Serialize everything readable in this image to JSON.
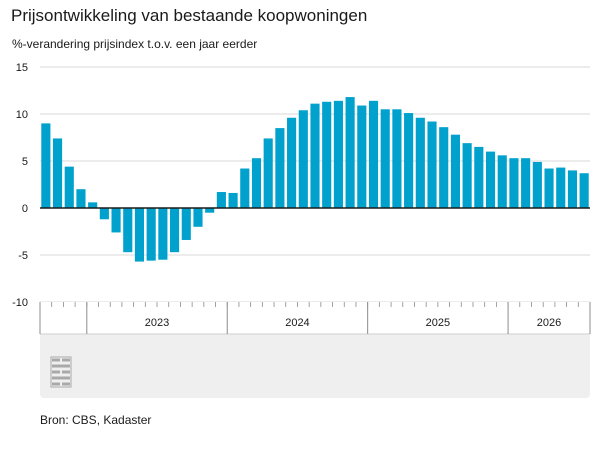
{
  "title": "Prijsontwikkeling van bestaande koopwoningen",
  "subtitle": "%-verandering prijsindex t.o.v. een jaar eerder",
  "source": "Bron: CBS, Kadaster",
  "logo": "cbs-logo",
  "colors": {
    "bar": "#00a1cd",
    "grid": "#d9d9d9",
    "zero_line": "#1a1a1a",
    "axis_panel": "#efefef"
  },
  "chart_data": {
    "type": "bar",
    "title": "Prijsontwikkeling van bestaande koopwoningen",
    "subtitle": "%-verandering prijsindex t.o.v. een jaar eerder",
    "xlabel": "",
    "ylabel": "",
    "ylim": [
      -10,
      15
    ],
    "yticks": [
      15,
      10,
      5,
      0,
      -5,
      -10
    ],
    "grid": true,
    "x_axis_years": [
      {
        "label": "2023",
        "start_index": 4,
        "count": 12
      },
      {
        "label": "2024",
        "start_index": 16,
        "count": 12
      },
      {
        "label": "2025",
        "start_index": 28,
        "count": 12
      },
      {
        "label": "2026",
        "start_index": 40,
        "count": 7
      }
    ],
    "values": [
      9.0,
      7.4,
      4.4,
      2.0,
      0.6,
      -1.2,
      -2.6,
      -4.7,
      -5.7,
      -5.6,
      -5.5,
      -4.7,
      -3.4,
      -2.0,
      -0.5,
      1.7,
      1.6,
      4.2,
      5.3,
      7.4,
      8.5,
      9.6,
      10.4,
      11.1,
      11.3,
      11.4,
      11.8,
      10.9,
      11.4,
      10.5,
      10.5,
      10.1,
      9.6,
      9.2,
      8.6,
      7.8,
      6.9,
      6.5,
      6.0,
      5.6,
      5.3,
      5.3,
      4.9,
      4.2,
      4.3,
      4.0,
      3.7
    ]
  }
}
